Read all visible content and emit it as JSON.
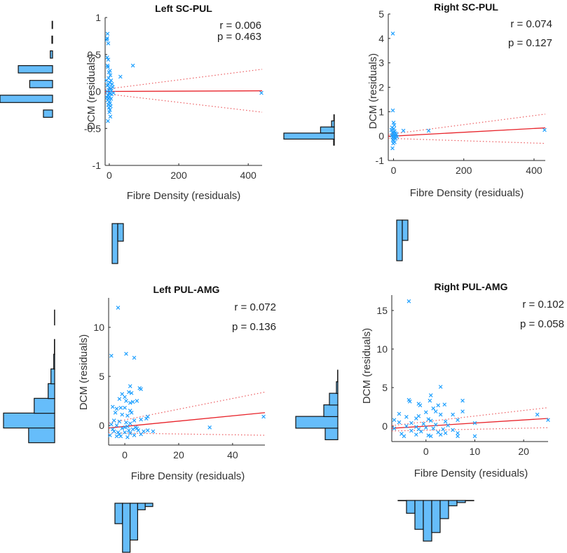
{
  "chart_data": [
    {
      "type": "scatter",
      "title": "Left SC-PUL",
      "xlabel": "Fibre Density (residuals)",
      "ylabel": "DCM (residuals)",
      "xlim": [
        -12,
        440
      ],
      "ylim": [
        -1,
        1
      ],
      "xticks": [
        0,
        200,
        400
      ],
      "yticks": [
        -1,
        -0.5,
        0,
        0.5,
        1
      ],
      "ytick_labels": [
        "-1",
        "-0.5",
        "0",
        "0.5",
        "1"
      ],
      "stats": {
        "r_label": "r = 0.006",
        "p_label": "p = 0.463"
      },
      "fit": {
        "intercept": 0.0,
        "slope": 2e-05,
        "ci_upper_end": 0.3,
        "ci_lower_end": -0.28,
        "ci_at_zero": 0.03
      },
      "points": [
        [
          -5,
          0.78
        ],
        [
          -6,
          0.72
        ],
        [
          -3,
          0.65
        ],
        [
          -7,
          0.7
        ],
        [
          -6,
          0.46
        ],
        [
          -3,
          0.43
        ],
        [
          -5,
          0.35
        ],
        [
          -4,
          0.33
        ],
        [
          2,
          0.28
        ],
        [
          -1,
          0.26
        ],
        [
          3,
          0.22
        ],
        [
          -2,
          0.18
        ],
        [
          5,
          0.15
        ],
        [
          1,
          0.12
        ],
        [
          8,
          0.1
        ],
        [
          -3,
          0.1
        ],
        [
          -5,
          0.08
        ],
        [
          0,
          0.05
        ],
        [
          4,
          0.04
        ],
        [
          -2,
          0.02
        ],
        [
          6,
          0.01
        ],
        [
          -6,
          0.0
        ],
        [
          -1,
          -0.02
        ],
        [
          3,
          -0.03
        ],
        [
          7,
          -0.04
        ],
        [
          -4,
          -0.05
        ],
        [
          1,
          -0.07
        ],
        [
          -2,
          -0.09
        ],
        [
          5,
          -0.1
        ],
        [
          -5,
          -0.12
        ],
        [
          0,
          -0.14
        ],
        [
          2,
          -0.16
        ],
        [
          -3,
          -0.18
        ],
        [
          4,
          -0.2
        ],
        [
          -1,
          -0.22
        ],
        [
          2,
          -0.25
        ],
        [
          0,
          -0.28
        ],
        [
          3,
          -0.34
        ],
        [
          -4,
          -0.4
        ],
        [
          32,
          0.2
        ],
        [
          68,
          0.35
        ],
        [
          438,
          -0.02
        ],
        [
          10,
          0.06
        ],
        [
          12,
          -0.02
        ],
        [
          -8,
          0.15
        ],
        [
          -7,
          -0.08
        ]
      ],
      "marginal_y_hist": {
        "bins": [
          -0.35,
          -0.25,
          -0.15,
          -0.05,
          0.05,
          0.15,
          0.25,
          0.35,
          0.45,
          0.55,
          0.65,
          0.75
        ],
        "counts": [
          0,
          0,
          0,
          0,
          0,
          0,
          0,
          0,
          0,
          0,
          0,
          0
        ]
      },
      "hist_y": [
        {
          "center": -0.3,
          "count": 4
        },
        {
          "center": -0.1,
          "count": 23
        },
        {
          "center": 0.1,
          "count": 10
        },
        {
          "center": 0.3,
          "count": 15
        },
        {
          "center": 0.5,
          "count": 1
        },
        {
          "center": 0.7,
          "count": 0.3
        },
        {
          "center": 0.9,
          "count": 0.2
        }
      ],
      "hist_x": [
        {
          "center": -10,
          "count": 50
        },
        {
          "center": 20,
          "count": 22
        }
      ]
    },
    {
      "type": "scatter",
      "title": "Right SC-PUL",
      "xlabel": "Fibre Density (residuals)",
      "ylabel": "DCM (residuals)",
      "xlim": [
        -15,
        432
      ],
      "ylim": [
        -1,
        5
      ],
      "xticks": [
        0,
        200,
        400
      ],
      "yticks": [
        -1,
        0,
        1,
        2,
        3,
        4,
        5
      ],
      "ytick_labels": [
        "-1",
        "0",
        "1",
        "2",
        "3",
        "4",
        "5"
      ],
      "stats": {
        "r_label": "r = 0.074",
        "p_label": "p = 0.127"
      },
      "fit": {
        "intercept": 0.0,
        "slope": 0.00078,
        "ci_upper_end": 0.9,
        "ci_lower_end": -0.3,
        "ci_at_zero": 0.08
      },
      "points": [
        [
          -2,
          4.2
        ],
        [
          -2,
          1.05
        ],
        [
          0,
          0.55
        ],
        [
          2,
          0.45
        ],
        [
          -4,
          0.35
        ],
        [
          1,
          0.3
        ],
        [
          -6,
          0.25
        ],
        [
          3,
          0.2
        ],
        [
          -3,
          0.15
        ],
        [
          5,
          0.12
        ],
        [
          -1,
          0.1
        ],
        [
          2,
          0.05
        ],
        [
          -5,
          0.02
        ],
        [
          0,
          0.0
        ],
        [
          4,
          -0.02
        ],
        [
          -3,
          -0.05
        ],
        [
          1,
          -0.08
        ],
        [
          6,
          -0.1
        ],
        [
          -2,
          -0.15
        ],
        [
          0,
          -0.2
        ],
        [
          3,
          -0.25
        ],
        [
          -1,
          -0.3
        ],
        [
          -3,
          -0.5
        ],
        [
          28,
          0.22
        ],
        [
          100,
          0.22
        ],
        [
          430,
          0.25
        ],
        [
          8,
          0.08
        ],
        [
          10,
          -0.03
        ]
      ],
      "hist_y": [
        {
          "center": -0.25,
          "count": 0.3
        },
        {
          "center": 0.0,
          "count": 22
        },
        {
          "center": 0.25,
          "count": 6
        },
        {
          "center": 0.5,
          "count": 1.2
        },
        {
          "center": 0.75,
          "count": 0.2
        }
      ],
      "hist_x": [
        {
          "center": -10,
          "count": 60
        },
        {
          "center": 20,
          "count": 30
        }
      ]
    },
    {
      "type": "scatter",
      "title": "Left PUL-AMG",
      "xlabel": "Fibre Density (residuals)",
      "ylabel": "DCM (residuals)",
      "xlim": [
        -6,
        52
      ],
      "ylim": [
        -2,
        13
      ],
      "xticks": [
        0,
        20,
        40
      ],
      "yticks": [
        0,
        5,
        10
      ],
      "ytick_labels": [
        "0",
        "5",
        "10"
      ],
      "stats": {
        "r_label": "r = 0.072",
        "p_label": "p = 0.136"
      },
      "fit": {
        "intercept": -0.1,
        "slope": 0.027,
        "ci_upper_end": 3.4,
        "ci_lower_end": -1.0,
        "ci_at_zero": 0.5
      },
      "points": [
        [
          -2.5,
          12
        ],
        [
          -5,
          7.1
        ],
        [
          0.5,
          7.3
        ],
        [
          3.5,
          6.9
        ],
        [
          2,
          4
        ],
        [
          5.5,
          3.8
        ],
        [
          6,
          3.7
        ],
        [
          2.5,
          3.3
        ],
        [
          1.5,
          3.4
        ],
        [
          -1,
          3.2
        ],
        [
          0,
          2.9
        ],
        [
          -2,
          2.7
        ],
        [
          0.5,
          2.5
        ],
        [
          3,
          2.4
        ],
        [
          2,
          2.3
        ],
        [
          4.5,
          2.5
        ],
        [
          -4.5,
          1.9
        ],
        [
          -3,
          1.7
        ],
        [
          -1.5,
          1.8
        ],
        [
          0,
          1.8
        ],
        [
          2,
          1.5
        ],
        [
          2.5,
          1.3
        ],
        [
          -3.5,
          1.3
        ],
        [
          -1,
          1.1
        ],
        [
          1,
          1.0
        ],
        [
          8.5,
          0.9
        ],
        [
          8,
          0.7
        ],
        [
          3.5,
          0.5
        ],
        [
          6,
          0.6
        ],
        [
          -4,
          0.5
        ],
        [
          -2,
          0.4
        ],
        [
          0.5,
          0.3
        ],
        [
          2,
          0.2
        ],
        [
          -5,
          0.1
        ],
        [
          -3,
          0.0
        ],
        [
          1,
          -0.1
        ],
        [
          4,
          -0.2
        ],
        [
          -1,
          -0.3
        ],
        [
          3,
          -0.4
        ],
        [
          5,
          -0.5
        ],
        [
          -4,
          -0.6
        ],
        [
          0,
          -0.7
        ],
        [
          2,
          -0.8
        ],
        [
          -2,
          -0.9
        ],
        [
          7,
          -0.6
        ],
        [
          8.5,
          -0.5
        ],
        [
          10.5,
          -0.6
        ],
        [
          -5.5,
          -1.0
        ],
        [
          -3,
          -1.1
        ],
        [
          1,
          -1.2
        ],
        [
          -1.5,
          -1.1
        ],
        [
          3.5,
          -1.0
        ],
        [
          6,
          -0.9
        ],
        [
          -4.5,
          -0.4
        ],
        [
          0,
          -0.2
        ],
        [
          1.5,
          -0.5
        ],
        [
          -2.5,
          -0.7
        ],
        [
          4.5,
          -0.3
        ],
        [
          31.5,
          -0.2
        ],
        [
          51.5,
          0.9
        ]
      ],
      "hist_y": [
        {
          "center": -1.0,
          "count": 28
        },
        {
          "center": 0.5,
          "count": 55
        },
        {
          "center": 2.0,
          "count": 22
        },
        {
          "center": 3.5,
          "count": 7
        },
        {
          "center": 5.0,
          "count": 4
        },
        {
          "center": 6.5,
          "count": 1
        },
        {
          "center": 8.0,
          "count": 0.3
        },
        {
          "center": 9.5,
          "count": 0
        },
        {
          "center": 11.0,
          "count": 0.2
        }
      ],
      "hist_x": [
        {
          "center": -4,
          "count": 25
        },
        {
          "center": -1,
          "count": 60
        },
        {
          "center": 2,
          "count": 45
        },
        {
          "center": 5,
          "count": 8
        },
        {
          "center": 8,
          "count": 4
        }
      ]
    },
    {
      "type": "scatter",
      "title": "Right PUL-AMG",
      "xlabel": "Fibre Density (residuals)",
      "ylabel": "DCM (residuals)",
      "xlim": [
        -7,
        25
      ],
      "ylim": [
        -2,
        17
      ],
      "xticks": [
        0,
        10,
        20
      ],
      "yticks": [
        0,
        5,
        10,
        15
      ],
      "ytick_labels": [
        "0",
        "5",
        "10",
        "15"
      ],
      "stats": {
        "r_label": "r = 0.102",
        "p_label": "p = 0.058"
      },
      "fit": {
        "intercept": 0.0,
        "slope": 0.04,
        "ci_upper_end": 2.4,
        "ci_lower_end": -0.2,
        "ci_at_zero": 0.35
      },
      "points": [
        [
          -3.5,
          16.2
        ],
        [
          3,
          5.1
        ],
        [
          -3.5,
          3.4
        ],
        [
          -3.3,
          3.2
        ],
        [
          1,
          4.0
        ],
        [
          0.8,
          3.3
        ],
        [
          7.5,
          3.3
        ],
        [
          -1.5,
          2.9
        ],
        [
          -1.2,
          2.7
        ],
        [
          2.5,
          2.7
        ],
        [
          3.8,
          2.8
        ],
        [
          1.5,
          2.3
        ],
        [
          7.5,
          1.9
        ],
        [
          -5.5,
          1.6
        ],
        [
          -1.5,
          1.3
        ],
        [
          0,
          1.8
        ],
        [
          2,
          1.9
        ],
        [
          3,
          1.5
        ],
        [
          5.5,
          1.5
        ],
        [
          -4,
          1.2
        ],
        [
          -6.5,
          0.8
        ],
        [
          -2,
          1.0
        ],
        [
          1,
          0.7
        ],
        [
          4,
          0.6
        ],
        [
          6.5,
          0.8
        ],
        [
          -5.5,
          0.5
        ],
        [
          -3,
          0.4
        ],
        [
          -0.5,
          0.3
        ],
        [
          2,
          0.2
        ],
        [
          4.5,
          0.1
        ],
        [
          -4,
          0.0
        ],
        [
          -2,
          -0.1
        ],
        [
          0,
          -0.2
        ],
        [
          1.5,
          -0.3
        ],
        [
          3.5,
          -0.4
        ],
        [
          5.5,
          -0.5
        ],
        [
          -6.5,
          -0.3
        ],
        [
          -3,
          -0.6
        ],
        [
          -1,
          -0.7
        ],
        [
          2.5,
          -0.8
        ],
        [
          4,
          -0.9
        ],
        [
          6.5,
          -0.9
        ],
        [
          -5,
          -1.0
        ],
        [
          -2,
          -1.1
        ],
        [
          0.5,
          -1.2
        ],
        [
          3,
          -1.1
        ],
        [
          6.5,
          -1.3
        ],
        [
          10,
          -1.3
        ],
        [
          10,
          0.4
        ],
        [
          22.8,
          1.5
        ],
        [
          25,
          0.8
        ],
        [
          -4.5,
          -1.3
        ],
        [
          1,
          -1.3
        ],
        [
          -1.5,
          -0.4
        ],
        [
          0.5,
          0.9
        ]
      ],
      "hist_y": [
        {
          "center": -1.0,
          "count": 18
        },
        {
          "center": 0.5,
          "count": 60
        },
        {
          "center": 2.0,
          "count": 20
        },
        {
          "center": 3.5,
          "count": 12
        },
        {
          "center": 5.0,
          "count": 2
        },
        {
          "center": 6.5,
          "count": 0.3
        }
      ],
      "hist_x": [
        {
          "center": -7,
          "count": 0.3
        },
        {
          "center": -5,
          "count": 12
        },
        {
          "center": -3,
          "count": 27
        },
        {
          "center": -1,
          "count": 38
        },
        {
          "center": 1,
          "count": 30
        },
        {
          "center": 3,
          "count": 17
        },
        {
          "center": 5,
          "count": 5
        },
        {
          "center": 7,
          "count": 2
        },
        {
          "center": 9,
          "count": 0.3
        }
      ]
    }
  ]
}
